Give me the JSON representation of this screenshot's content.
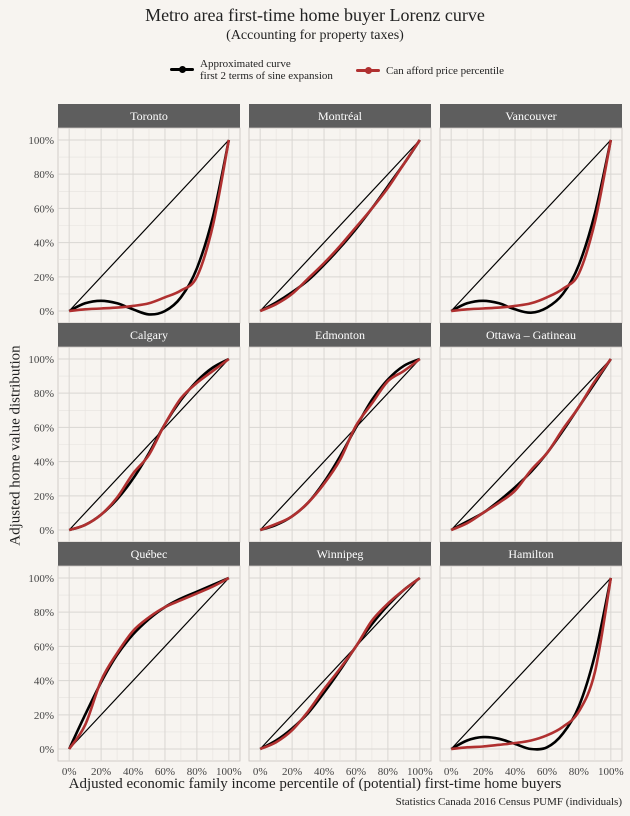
{
  "title": "Metro area first-time home buyer Lorenz curve",
  "subtitle": "(Accounting for property taxes)",
  "caption": "Statistics Canada 2016 Census PUMF (individuals)",
  "legend": [
    {
      "label_lines": [
        "Approximated curve",
        "first 2 terms of sine expansion"
      ],
      "color": "#000000"
    },
    {
      "label_lines": [
        "Can afford price percentile"
      ],
      "color": "#b03030"
    }
  ],
  "chart_data": {
    "type": "line",
    "facet_layout": "3x3",
    "xlabel": "Adjusted economic family income percentile of (potential) first-time home buyers",
    "ylabel": "Adjusted home value distribution",
    "xlim": [
      0,
      1
    ],
    "ylim": [
      0,
      1
    ],
    "x_ticks": [
      "0%",
      "20%",
      "40%",
      "60%",
      "80%",
      "100%"
    ],
    "y_ticks": [
      "0%",
      "20%",
      "40%",
      "60%",
      "80%",
      "100%"
    ],
    "grid": true,
    "colors": {
      "approx": "#000000",
      "afford": "#b03030",
      "equality": "#000000",
      "strip": "#5e5e5e",
      "panel_bg": "#f7f4f0",
      "grid": "#d9d6d2"
    },
    "series_names": [
      "Approximated curve first 2 terms of sine expansion",
      "Can afford price percentile"
    ],
    "x": [
      0,
      0.1,
      0.2,
      0.3,
      0.4,
      0.5,
      0.6,
      0.7,
      0.8,
      0.9,
      1.0
    ],
    "panels": [
      {
        "name": "Toronto",
        "approx": [
          0,
          0.045,
          0.06,
          0.045,
          0.01,
          -0.02,
          0.0,
          0.08,
          0.25,
          0.55,
          1.0
        ],
        "afford": [
          0,
          0.01,
          0.015,
          0.02,
          0.03,
          0.045,
          0.08,
          0.12,
          0.2,
          0.5,
          1.0
        ]
      },
      {
        "name": "Montréal",
        "approx": [
          0,
          0.05,
          0.11,
          0.18,
          0.27,
          0.37,
          0.48,
          0.6,
          0.73,
          0.86,
          1.0
        ],
        "afford": [
          0,
          0.04,
          0.1,
          0.19,
          0.28,
          0.38,
          0.49,
          0.6,
          0.72,
          0.86,
          1.0
        ]
      },
      {
        "name": "Vancouver",
        "approx": [
          0,
          0.045,
          0.06,
          0.045,
          0.01,
          -0.01,
          0.02,
          0.1,
          0.27,
          0.57,
          1.0
        ],
        "afford": [
          0,
          0.01,
          0.015,
          0.02,
          0.03,
          0.045,
          0.08,
          0.13,
          0.22,
          0.52,
          1.0
        ]
      },
      {
        "name": "Calgary",
        "approx": [
          0,
          0.03,
          0.09,
          0.18,
          0.3,
          0.45,
          0.62,
          0.76,
          0.87,
          0.95,
          1.0
        ],
        "afford": [
          0,
          0.03,
          0.09,
          0.19,
          0.33,
          0.44,
          0.62,
          0.77,
          0.86,
          0.93,
          1.0
        ]
      },
      {
        "name": "Edmonton",
        "approx": [
          0,
          0.03,
          0.08,
          0.16,
          0.28,
          0.43,
          0.6,
          0.76,
          0.88,
          0.96,
          1.0
        ],
        "afford": [
          0,
          0.035,
          0.08,
          0.16,
          0.27,
          0.41,
          0.61,
          0.74,
          0.87,
          0.93,
          1.0
        ]
      },
      {
        "name": "Ottawa – Gatineau",
        "approx": [
          0,
          0.05,
          0.1,
          0.17,
          0.25,
          0.34,
          0.45,
          0.58,
          0.72,
          0.86,
          1.0
        ],
        "afford": [
          0,
          0.04,
          0.1,
          0.16,
          0.23,
          0.35,
          0.45,
          0.59,
          0.72,
          0.87,
          1.0
        ]
      },
      {
        "name": "Québec",
        "approx": [
          0,
          0.2,
          0.39,
          0.55,
          0.67,
          0.76,
          0.83,
          0.88,
          0.92,
          0.96,
          1.0
        ],
        "afford": [
          0,
          0.14,
          0.4,
          0.56,
          0.69,
          0.77,
          0.83,
          0.87,
          0.91,
          0.95,
          1.0
        ]
      },
      {
        "name": "Winnipeg",
        "approx": [
          0,
          0.05,
          0.12,
          0.21,
          0.33,
          0.46,
          0.6,
          0.73,
          0.84,
          0.93,
          1.0
        ],
        "afford": [
          0,
          0.04,
          0.11,
          0.22,
          0.35,
          0.47,
          0.6,
          0.75,
          0.85,
          0.93,
          1.0
        ]
      },
      {
        "name": "Hamilton",
        "approx": [
          0,
          0.05,
          0.07,
          0.06,
          0.03,
          0.0,
          0.01,
          0.09,
          0.25,
          0.55,
          1.0
        ],
        "afford": [
          0,
          0.01,
          0.015,
          0.025,
          0.035,
          0.05,
          0.08,
          0.13,
          0.22,
          0.45,
          1.0
        ]
      }
    ]
  }
}
